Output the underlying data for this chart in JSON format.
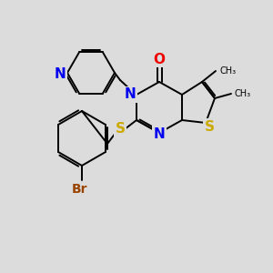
{
  "bg_color": "#dcdcdc",
  "atom_colors": {
    "N": "#0000ee",
    "O": "#ee0000",
    "S": "#ccaa00",
    "Br": "#994400"
  },
  "bond_color": "#000000",
  "figsize": [
    3.0,
    3.0
  ],
  "dpi": 100
}
